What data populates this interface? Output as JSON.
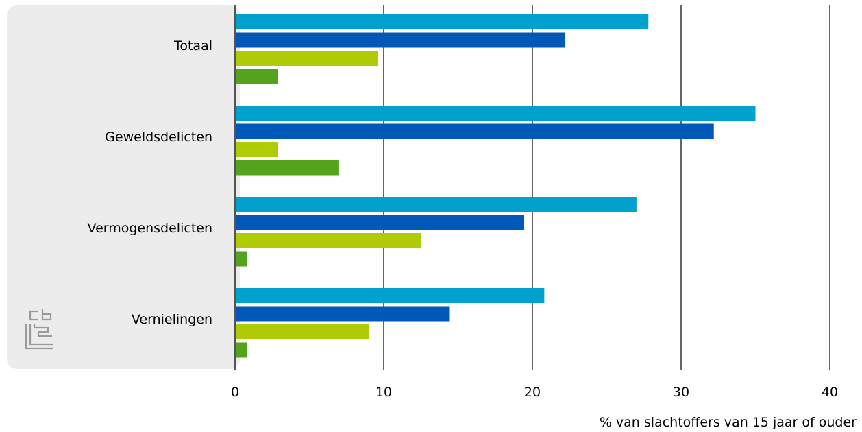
{
  "chart_data": {
    "type": "bar",
    "orientation": "horizontal",
    "categories": [
      "Totaal",
      "Geweldsdelicten",
      "Vermogensdelicten",
      "Vernielingen"
    ],
    "series": [
      {
        "values": [
          27.8,
          35.0,
          27.0,
          20.8
        ],
        "color": "#00a1cd"
      },
      {
        "values": [
          22.2,
          32.2,
          19.4,
          14.4
        ],
        "color": "#0058b8"
      },
      {
        "values": [
          9.6,
          2.9,
          12.5,
          9.0
        ],
        "color": "#afcb05"
      },
      {
        "values": [
          2.9,
          7.0,
          0.8,
          0.8
        ],
        "color": "#53a31d"
      }
    ],
    "xlabel": "% van slachtoffers van 15 jaar of ouder",
    "xlim": [
      0,
      40
    ],
    "xticks": [
      "0",
      "10",
      "20",
      "30",
      "40"
    ],
    "grid": true,
    "label_panel_color": "#ececec",
    "logo": "cbs-logo"
  }
}
